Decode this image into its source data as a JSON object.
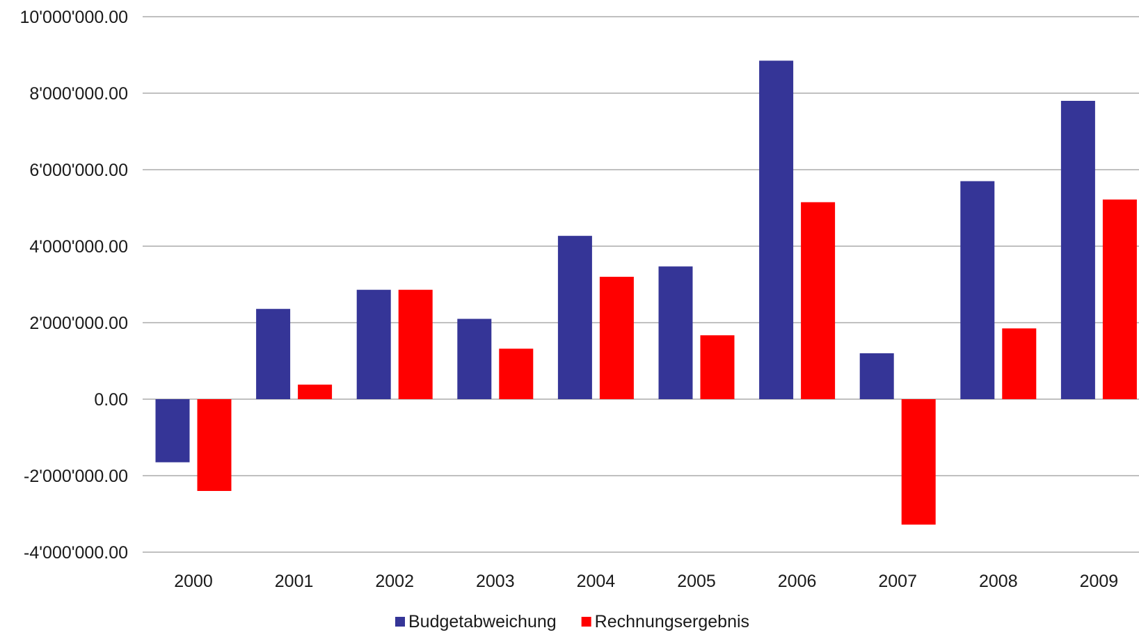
{
  "chart_data": {
    "type": "bar",
    "title": "",
    "xlabel": "",
    "ylabel": "",
    "categories": [
      "2000",
      "2001",
      "2002",
      "2003",
      "2004",
      "2005",
      "2006",
      "2007",
      "2008",
      "2009"
    ],
    "series": [
      {
        "name": "Budgetabweichung",
        "color": "#353597",
        "values": [
          -1650000,
          2360000,
          2860000,
          2100000,
          4270000,
          3470000,
          8850000,
          1200000,
          5700000,
          7800000
        ]
      },
      {
        "name": "Rechnungsergebnis",
        "color": "#ff0000",
        "values": [
          -2400000,
          380000,
          2860000,
          1320000,
          3200000,
          1670000,
          5150000,
          -3280000,
          1850000,
          5220000
        ]
      }
    ],
    "ylim": [
      -4000000,
      10000000
    ],
    "y_ticks": [
      -4000000,
      -2000000,
      0,
      2000000,
      4000000,
      6000000,
      8000000,
      10000000
    ],
    "y_tick_labels": [
      "-4'000'000.00",
      "-2'000'000.00",
      "0.00",
      "2'000'000.00",
      "4'000'000.00",
      "6'000'000.00",
      "8'000'000.00",
      "10'000'000.00"
    ],
    "grid": true,
    "legend_position": "bottom"
  }
}
